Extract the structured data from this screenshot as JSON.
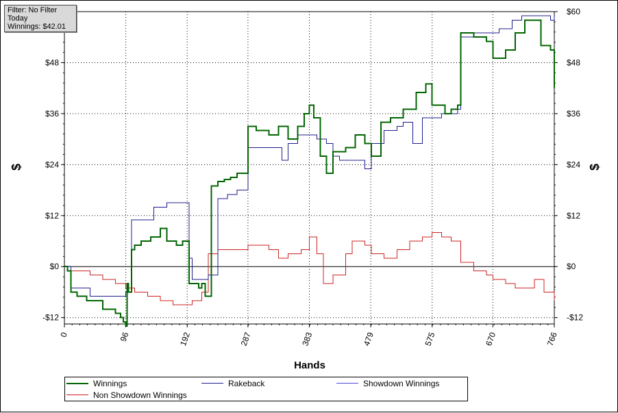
{
  "info": {
    "filter": "Filter: No Filter",
    "period": "Today",
    "winnings": "Winnings: $42.01"
  },
  "chart_data": {
    "type": "line",
    "xlabel": "Hands",
    "ylabel_left": "$",
    "ylabel_right": "$",
    "xlim": [
      0,
      766
    ],
    "ylim": [
      -13.5,
      60
    ],
    "x_ticks": [
      0,
      96,
      192,
      287,
      383,
      479,
      575,
      670,
      766
    ],
    "y_ticks": [
      -12,
      0,
      12,
      24,
      36,
      48
    ],
    "y_tick_labels": [
      "-$12",
      "$0",
      "$12",
      "$24",
      "$36",
      "$48"
    ],
    "y_ticks_right": [
      -12,
      0,
      12,
      24,
      36,
      48,
      60
    ],
    "y_tick_labels_right": [
      "-$12",
      "$0",
      "$12",
      "$24",
      "$36",
      "$48",
      "$60"
    ],
    "grid": true,
    "legend_position": "bottom",
    "series": [
      {
        "name": "Winnings",
        "color": "#006400",
        "x": [
          0,
          5,
          10,
          20,
          35,
          60,
          80,
          88,
          92,
          96,
          98,
          100,
          105,
          110,
          120,
          135,
          150,
          160,
          175,
          185,
          195,
          200,
          210,
          215,
          220,
          230,
          240,
          250,
          260,
          270,
          287,
          300,
          320,
          335,
          350,
          365,
          375,
          383,
          390,
          400,
          410,
          420,
          440,
          455,
          470,
          480,
          495,
          510,
          530,
          550,
          565,
          575,
          585,
          595,
          605,
          615,
          620,
          640,
          660,
          670,
          690,
          705,
          720,
          730,
          745,
          760,
          766
        ],
        "y": [
          0,
          -1,
          -6,
          -7,
          -8,
          -10,
          -11,
          -12,
          -13,
          -14,
          -4,
          -6,
          4,
          5,
          6,
          7,
          9,
          6,
          5,
          6,
          -4,
          -4,
          -5,
          -4,
          -7,
          19,
          20,
          20.5,
          21,
          22,
          33,
          32,
          31,
          33,
          30,
          33,
          36,
          38,
          35,
          26,
          22,
          27,
          28,
          31,
          29,
          26,
          34,
          35,
          37,
          41,
          43,
          38,
          38,
          36,
          37,
          38,
          55,
          54,
          53,
          49,
          51,
          55,
          58,
          58,
          52,
          51,
          42
        ]
      },
      {
        "name": "Rakeback",
        "color": "#1c1c8c",
        "x": [
          0,
          5,
          10,
          20,
          40,
          60,
          80,
          92,
          96,
          105,
          120,
          140,
          160,
          175,
          185,
          195,
          200,
          215,
          225,
          240,
          255,
          270,
          287,
          310,
          340,
          350,
          365,
          383,
          395,
          410,
          420,
          430,
          470,
          480,
          500,
          520,
          530,
          545,
          560,
          575,
          590,
          605,
          615,
          620,
          640,
          660,
          680,
          700,
          715,
          740,
          760,
          766
        ],
        "y": [
          0,
          0,
          -5,
          -5,
          -7,
          -7,
          -7,
          -7,
          -6,
          11,
          11,
          14,
          15,
          15,
          15,
          2,
          -3,
          -3,
          -2,
          16,
          17,
          18,
          28,
          28,
          25,
          29,
          31,
          31,
          30,
          29,
          26,
          25,
          23,
          29,
          32,
          33,
          34,
          29,
          35,
          35,
          36,
          36,
          37,
          54,
          55,
          55,
          56,
          58,
          59,
          59,
          58,
          59
        ]
      },
      {
        "name": "Showdown Winnings",
        "color": "#4a4ad8",
        "x": [],
        "y": []
      },
      {
        "name": "Non Showdown Winnings",
        "color": "#cc2020",
        "x": [
          0,
          5,
          10,
          40,
          60,
          80,
          96,
          110,
          130,
          150,
          170,
          190,
          200,
          215,
          225,
          240,
          250,
          270,
          287,
          300,
          320,
          335,
          350,
          370,
          383,
          395,
          405,
          420,
          440,
          450,
          470,
          480,
          500,
          520,
          540,
          560,
          575,
          590,
          605,
          620,
          640,
          660,
          670,
          690,
          705,
          720,
          735,
          750,
          766
        ],
        "y": [
          0,
          0,
          -1,
          -2,
          -3,
          -4,
          -5,
          -6,
          -7,
          -8,
          -9,
          -9,
          -8,
          -6,
          3,
          4,
          4,
          4,
          5,
          5,
          4,
          2,
          3,
          4,
          7,
          3,
          -4,
          -2,
          3,
          6,
          5,
          3,
          2,
          4,
          6,
          7,
          8,
          7,
          6,
          1,
          -1,
          -2,
          -3,
          -4,
          -5,
          -5,
          -3,
          -6,
          -8
        ]
      }
    ]
  }
}
